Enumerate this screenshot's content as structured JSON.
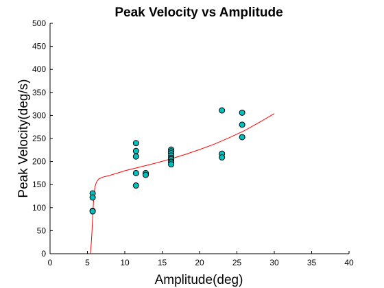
{
  "chart_data": {
    "type": "scatter",
    "title": "Peak Velocity vs Amplitude",
    "xlabel": "Amplitude(deg)",
    "ylabel": "Peak Velocity(deg/s)",
    "xlim": [
      0,
      40
    ],
    "ylim": [
      0,
      500
    ],
    "xticks": [
      0,
      5,
      10,
      15,
      20,
      25,
      30,
      35,
      40
    ],
    "yticks": [
      0,
      50,
      100,
      150,
      200,
      250,
      300,
      350,
      400,
      450,
      500
    ],
    "grid": false,
    "legend": "none",
    "series": [
      {
        "type": "scatter",
        "color": "#00bfbf",
        "edgecolor": "#000000",
        "points": [
          [
            5.7,
            131
          ],
          [
            5.7,
            122
          ],
          [
            5.7,
            93
          ],
          [
            5.7,
            92
          ],
          [
            11.5,
            240
          ],
          [
            11.5,
            223
          ],
          [
            11.5,
            211
          ],
          [
            11.5,
            175
          ],
          [
            11.5,
            148
          ],
          [
            12.8,
            175
          ],
          [
            12.8,
            171
          ],
          [
            16.2,
            226
          ],
          [
            16.2,
            222
          ],
          [
            16.2,
            218
          ],
          [
            16.2,
            213
          ],
          [
            16.2,
            208
          ],
          [
            16.2,
            205
          ],
          [
            16.2,
            200
          ],
          [
            16.2,
            198
          ],
          [
            16.2,
            194
          ],
          [
            23,
            311
          ],
          [
            23,
            217
          ],
          [
            23,
            209
          ],
          [
            25.7,
            306
          ],
          [
            25.7,
            280
          ],
          [
            25.7,
            253
          ]
        ]
      },
      {
        "type": "line",
        "color": "#ff0000",
        "points": [
          [
            5.4,
            0
          ],
          [
            5.5,
            20
          ],
          [
            5.6,
            45
          ],
          [
            5.7,
            80
          ],
          [
            5.8,
            110
          ],
          [
            5.9,
            130
          ],
          [
            6.0,
            145
          ],
          [
            6.2,
            155
          ],
          [
            6.5,
            162
          ],
          [
            7,
            166
          ],
          [
            8,
            170
          ],
          [
            10,
            180
          ],
          [
            12,
            188
          ],
          [
            14,
            196
          ],
          [
            16,
            205
          ],
          [
            18,
            215
          ],
          [
            20,
            226
          ],
          [
            22,
            238
          ],
          [
            24,
            252
          ],
          [
            26,
            267
          ],
          [
            28,
            285
          ],
          [
            30,
            304
          ]
        ]
      }
    ]
  }
}
